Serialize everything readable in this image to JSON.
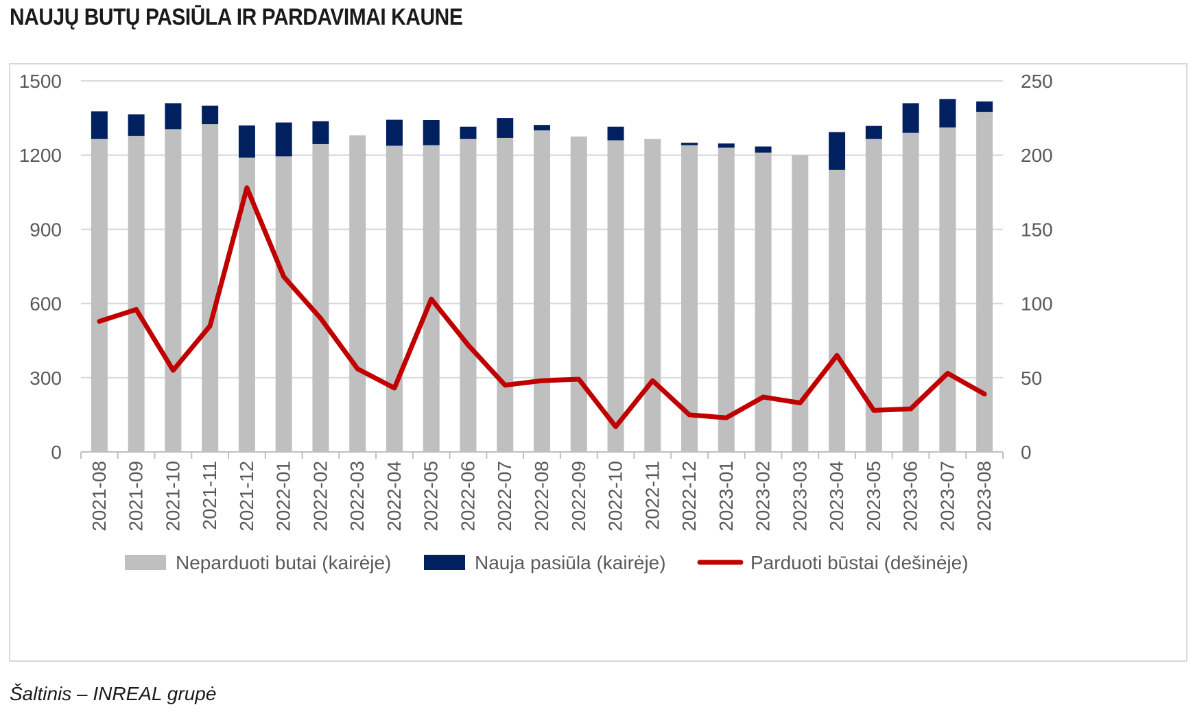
{
  "title": "NAUJŲ BUTŲ PASIŪLA IR PARDAVIMAI KAUNE",
  "source": "Šaltinis – INREAL grupė",
  "colors": {
    "unsold": "#bfbfbf",
    "new_supply": "#002060",
    "sold": "#c00000",
    "grid": "#d9d9d9",
    "axis": "#bfbfbf",
    "text": "#595959"
  },
  "chart_data": {
    "type": "bar",
    "stacked": true,
    "categories": [
      "2021-08",
      "2021-09",
      "2021-10",
      "2021-11",
      "2021-12",
      "2022-01",
      "2022-02",
      "2022-03",
      "2022-04",
      "2022-05",
      "2022-06",
      "2022-07",
      "2022-08",
      "2022-09",
      "2022-10",
      "2022-11",
      "2022-12",
      "2023-01",
      "2023-02",
      "2023-03",
      "2023-04",
      "2023-05",
      "2023-06",
      "2023-07",
      "2023-08"
    ],
    "y_left": {
      "min": 0,
      "max": 1500,
      "ticks": [
        0,
        300,
        600,
        900,
        1200,
        1500
      ]
    },
    "y_right": {
      "min": 0,
      "max": 250,
      "ticks": [
        0,
        50,
        100,
        150,
        200,
        250
      ]
    },
    "grid": true,
    "legend_position": "bottom",
    "series": [
      {
        "name": "Neparduoti butai (kairėje)",
        "type": "bar",
        "axis": "left",
        "color": "#bfbfbf",
        "values": [
          1265,
          1278,
          1305,
          1325,
          1190,
          1195,
          1245,
          1280,
          1238,
          1240,
          1265,
          1270,
          1300,
          1275,
          1260,
          1265,
          1240,
          1230,
          1210,
          1200,
          1140,
          1265,
          1290,
          1312,
          1375
        ]
      },
      {
        "name": "Nauja pasiūla (kairėje)",
        "type": "bar",
        "axis": "left",
        "color": "#002060",
        "values": [
          112,
          87,
          105,
          75,
          130,
          137,
          92,
          0,
          105,
          102,
          50,
          80,
          22,
          0,
          55,
          0,
          10,
          17,
          25,
          0,
          153,
          53,
          120,
          115,
          42
        ]
      },
      {
        "name": "Parduoti būstai (dešinėje)",
        "type": "line",
        "axis": "right",
        "color": "#c00000",
        "values": [
          88,
          96,
          55,
          85,
          178,
          118,
          90,
          56,
          43,
          103,
          72,
          45,
          48,
          49,
          17,
          48,
          25,
          23,
          37,
          33,
          65,
          28,
          29,
          53,
          39
        ]
      }
    ]
  }
}
